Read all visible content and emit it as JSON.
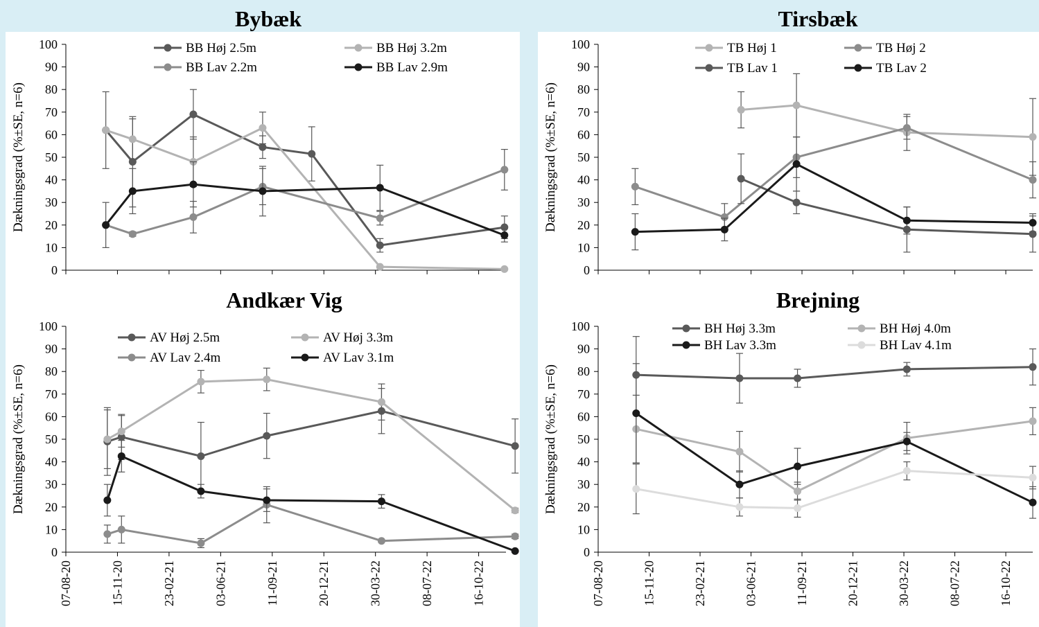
{
  "x_ticks": [
    "07-08-20",
    "15-11-20",
    "23-02-21",
    "03-06-21",
    "11-09-21",
    "20-12-21",
    "30-03-22",
    "08-07-22",
    "16-10-22"
  ],
  "chart_data": [
    {
      "type": "line",
      "title": "Bybæk",
      "ylabel": "Dækningsgrad (%±SE, n=6)",
      "ylim": [
        0,
        100
      ],
      "yticks": [
        0,
        10,
        20,
        30,
        40,
        50,
        60,
        70,
        80,
        90,
        100
      ],
      "x_axis": "date",
      "x_ticks": [
        "07-08-20",
        "15-11-20",
        "23-02-21",
        "03-06-21",
        "11-09-21",
        "20-12-21",
        "30-03-22",
        "08-07-22",
        "16-10-22"
      ],
      "legend_position": "top",
      "series": [
        {
          "name": "BB Høj 2.5m",
          "color": "#595959",
          "points": [
            [
              "2020-10-25",
              62,
              17
            ],
            [
              "2020-12-17",
              48,
              20
            ],
            [
              "2021-04-16",
              69,
              11
            ],
            [
              "2021-08-31",
              54.5,
              5
            ],
            [
              "2021-12-06",
              51.5,
              12
            ],
            [
              "2022-04-20",
              11,
              3
            ],
            [
              "2022-12-22",
              19,
              5
            ]
          ]
        },
        {
          "name": "BB Høj 3.2m",
          "color": "#b3b3b3",
          "points": [
            [
              "2020-10-25",
              62,
              0
            ],
            [
              "2020-12-17",
              58,
              9
            ],
            [
              "2021-04-16",
              48,
              11
            ],
            [
              "2021-08-31",
              63,
              7
            ],
            [
              "2022-04-20",
              1.5,
              0
            ],
            [
              "2022-12-22",
              0.5,
              0
            ]
          ]
        },
        {
          "name": "BB Lav 2.2m",
          "color": "#8c8c8c",
          "points": [
            [
              "2020-10-25",
              20,
              0
            ],
            [
              "2020-12-17",
              16,
              1
            ],
            [
              "2021-04-16",
              23.5,
              7
            ],
            [
              "2021-08-31",
              37,
              8
            ],
            [
              "2022-04-20",
              23,
              3
            ],
            [
              "2022-12-22",
              44.5,
              9
            ]
          ]
        },
        {
          "name": "BB Lav 2.9m",
          "color": "#1a1a1a",
          "points": [
            [
              "2020-10-25",
              20,
              10
            ],
            [
              "2020-12-17",
              35,
              10
            ],
            [
              "2021-04-16",
              38,
              10
            ],
            [
              "2021-08-31",
              35,
              11
            ],
            [
              "2022-04-20",
              36.5,
              10
            ],
            [
              "2022-12-22",
              15.5,
              3
            ]
          ]
        }
      ]
    },
    {
      "type": "line",
      "title": "Tirsbæk",
      "ylabel": "Dækningsgrad (%±SE, n=6)",
      "ylim": [
        0,
        100
      ],
      "yticks": [
        0,
        10,
        20,
        30,
        40,
        50,
        60,
        70,
        80,
        90,
        100
      ],
      "x_axis": "date",
      "x_ticks": [
        "07-08-20",
        "15-11-20",
        "23-02-21",
        "03-06-21",
        "11-09-21",
        "20-12-21",
        "30-03-22",
        "08-07-22",
        "16-10-22"
      ],
      "legend_position": "top",
      "series": [
        {
          "name": "TB Høj 1",
          "color": "#b3b3b3",
          "points": [
            [
              "2021-05-20",
              71,
              8
            ],
            [
              "2021-09-08",
              73,
              14
            ],
            [
              "2022-04-17",
              61,
              8
            ],
            [
              "2022-12-25",
              59,
              17
            ]
          ]
        },
        {
          "name": "TB Høj 2",
          "color": "#8c8c8c",
          "points": [
            [
              "2020-10-20",
              37,
              8
            ],
            [
              "2021-04-17",
              23.5,
              6
            ],
            [
              "2021-09-08",
              50,
              9
            ],
            [
              "2022-04-17",
              63,
              5
            ],
            [
              "2022-12-25",
              40,
              8
            ]
          ]
        },
        {
          "name": "TB Lav 1",
          "color": "#595959",
          "points": [
            [
              "2021-05-20",
              40.5,
              11
            ],
            [
              "2021-09-08",
              30,
              5
            ],
            [
              "2022-04-17",
              18,
              10
            ],
            [
              "2022-12-25",
              16,
              8
            ]
          ]
        },
        {
          "name": "TB Lav 2",
          "color": "#1a1a1a",
          "points": [
            [
              "2020-10-20",
              17,
              8
            ],
            [
              "2021-04-17",
              18,
              5
            ],
            [
              "2021-09-08",
              47,
              12
            ],
            [
              "2022-04-17",
              22,
              6
            ],
            [
              "2022-12-25",
              21,
              4
            ]
          ]
        }
      ]
    },
    {
      "type": "line",
      "title": "Andkær Vig",
      "ylabel": "Dækningsgrad (%±SE, n=6)",
      "ylim": [
        0,
        100
      ],
      "yticks": [
        0,
        10,
        20,
        30,
        40,
        50,
        60,
        70,
        80,
        90,
        100
      ],
      "x_axis": "date",
      "x_ticks": [
        "07-08-20",
        "15-11-20",
        "23-02-21",
        "03-06-21",
        "11-09-21",
        "20-12-21",
        "30-03-22",
        "08-07-22",
        "16-10-22"
      ],
      "legend_position": "top",
      "series": [
        {
          "name": "AV Høj 2.5m",
          "color": "#595959",
          "points": [
            [
              "2020-10-28",
              49,
              15
            ],
            [
              "2020-11-25",
              51,
              10
            ],
            [
              "2021-05-01",
              42.5,
              15
            ],
            [
              "2021-09-08",
              51.5,
              10
            ],
            [
              "2022-04-23",
              62.5,
              10
            ],
            [
              "2023-01-12",
              47,
              12
            ]
          ]
        },
        {
          "name": "AV Høj 3.3m",
          "color": "#b3b3b3",
          "points": [
            [
              "2020-10-28",
              50,
              13
            ],
            [
              "2020-11-25",
              53.5,
              7
            ],
            [
              "2021-05-01",
              75.5,
              5
            ],
            [
              "2021-09-08",
              76.5,
              5
            ],
            [
              "2022-04-23",
              66.5,
              8
            ],
            [
              "2023-01-12",
              18.5,
              1
            ]
          ]
        },
        {
          "name": "AV Lav 2.4m",
          "color": "#8c8c8c",
          "points": [
            [
              "2020-10-28",
              8,
              4
            ],
            [
              "2020-11-25",
              10,
              6
            ],
            [
              "2021-05-01",
              4,
              2
            ],
            [
              "2021-09-08",
              21,
              8
            ],
            [
              "2022-04-23",
              5,
              0
            ],
            [
              "2023-01-12",
              7,
              1
            ]
          ]
        },
        {
          "name": "AV Lav 3.1m",
          "color": "#1a1a1a",
          "points": [
            [
              "2020-10-28",
              23,
              7
            ],
            [
              "2020-11-25",
              42.5,
              7
            ],
            [
              "2021-05-01",
              27,
              3
            ],
            [
              "2021-09-08",
              23,
              5
            ],
            [
              "2022-04-23",
              22.5,
              3
            ],
            [
              "2023-01-12",
              0.5,
              0
            ]
          ]
        }
      ]
    },
    {
      "type": "line",
      "title": "Brejning",
      "ylabel": "Dækningsgrad (%±SE, n=6)",
      "ylim": [
        0,
        100
      ],
      "yticks": [
        0,
        10,
        20,
        30,
        40,
        50,
        60,
        70,
        80,
        90,
        100
      ],
      "x_axis": "date",
      "x_ticks": [
        "07-08-20",
        "15-11-20",
        "23-02-21",
        "03-06-21",
        "11-09-21",
        "20-12-21",
        "30-03-22",
        "08-07-22",
        "16-10-22"
      ],
      "legend_position": "top",
      "series": [
        {
          "name": "BH Høj 3.3m",
          "color": "#595959",
          "points": [
            [
              "2020-10-22",
              78.5,
              17
            ],
            [
              "2021-05-17",
              77,
              11
            ],
            [
              "2021-09-10",
              77,
              4
            ],
            [
              "2022-04-17",
              81,
              3
            ],
            [
              "2022-12-25",
              82,
              8
            ]
          ]
        },
        {
          "name": "BH Høj 4.0m",
          "color": "#b3b3b3",
          "points": [
            [
              "2020-10-22",
              54.5,
              15
            ],
            [
              "2021-05-17",
              44.5,
              9
            ],
            [
              "2021-09-10",
              27,
              4
            ],
            [
              "2022-04-17",
              50.5,
              7
            ],
            [
              "2022-12-25",
              58,
              6
            ]
          ]
        },
        {
          "name": "BH Lav 3.3m",
          "color": "#1a1a1a",
          "points": [
            [
              "2020-10-22",
              61.5,
              22
            ],
            [
              "2021-05-17",
              30,
              6
            ],
            [
              "2021-09-10",
              38,
              8
            ],
            [
              "2022-04-17",
              49,
              4
            ],
            [
              "2022-12-25",
              22,
              7
            ]
          ]
        },
        {
          "name": "BH Lav 4.1m",
          "color": "#dcdcdc",
          "points": [
            [
              "2020-10-22",
              28,
              11
            ],
            [
              "2021-05-17",
              20,
              4
            ],
            [
              "2021-09-10",
              19.5,
              4
            ],
            [
              "2022-04-17",
              36,
              4
            ],
            [
              "2022-12-25",
              33,
              5
            ]
          ]
        }
      ]
    }
  ]
}
